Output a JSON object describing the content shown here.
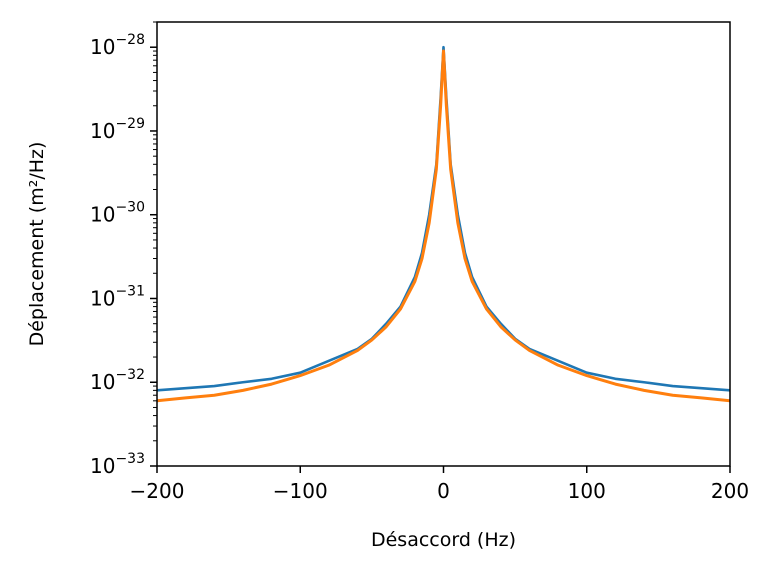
{
  "chart_data": {
    "type": "line",
    "xlabel": "Désaccord (Hz)",
    "ylabel": "Déplacement (m²/Hz)",
    "xlim": [
      -200,
      200
    ],
    "ylim": [
      1e-33,
      2e-28
    ],
    "yscale": "log",
    "grid": false,
    "x_ticks": [
      {
        "value": -200,
        "label": "−200"
      },
      {
        "value": -100,
        "label": "−100"
      },
      {
        "value": 0,
        "label": "0"
      },
      {
        "value": 100,
        "label": "100"
      },
      {
        "value": 200,
        "label": "200"
      }
    ],
    "y_ticks": [
      {
        "exp": -33,
        "base": "10",
        "exponent": "−33"
      },
      {
        "exp": -32,
        "base": "10",
        "exponent": "−32"
      },
      {
        "exp": -31,
        "base": "10",
        "exponent": "−31"
      },
      {
        "exp": -30,
        "base": "10",
        "exponent": "−30"
      },
      {
        "exp": -29,
        "base": "10",
        "exponent": "−29"
      },
      {
        "exp": -28,
        "base": "10",
        "exponent": "−28"
      }
    ],
    "series": [
      {
        "kind": "noisy-measurement",
        "color": "#1f77b4",
        "x": [
          -200,
          -180,
          -160,
          -140,
          -120,
          -100,
          -80,
          -60,
          -50,
          -40,
          -30,
          -20,
          -15,
          -10,
          -5,
          -2,
          0,
          2,
          5,
          10,
          15,
          20,
          30,
          40,
          50,
          60,
          80,
          100,
          120,
          140,
          160,
          180,
          200
        ],
        "y": [
          8e-33,
          8.5e-33,
          9e-33,
          1e-32,
          1.1e-32,
          1.3e-32,
          1.8e-32,
          2.5e-32,
          3.3e-32,
          5e-32,
          8e-32,
          1.8e-31,
          3.5e-31,
          1e-30,
          4e-30,
          2.5e-29,
          1e-28,
          2.5e-29,
          4e-30,
          1e-30,
          3.5e-31,
          1.8e-31,
          8e-32,
          5e-32,
          3.3e-32,
          2.5e-32,
          1.8e-32,
          1.3e-32,
          1.1e-32,
          1e-32,
          9e-33,
          8.5e-33,
          8e-33
        ]
      },
      {
        "kind": "fit",
        "color": "#ff7f0e",
        "x": [
          -200,
          -180,
          -160,
          -140,
          -120,
          -100,
          -80,
          -60,
          -50,
          -40,
          -30,
          -20,
          -15,
          -10,
          -5,
          -2,
          0,
          2,
          5,
          10,
          15,
          20,
          30,
          40,
          50,
          60,
          80,
          100,
          120,
          140,
          160,
          180,
          200
        ],
        "y": [
          6e-33,
          6.5e-33,
          7e-33,
          8e-33,
          9.5e-33,
          1.2e-32,
          1.6e-32,
          2.4e-32,
          3.2e-32,
          4.6e-32,
          7.5e-32,
          1.6e-31,
          3e-31,
          8e-31,
          3.5e-30,
          2e-29,
          9e-29,
          2e-29,
          3.5e-30,
          8e-31,
          3e-31,
          1.6e-31,
          7.5e-32,
          4.6e-32,
          3.2e-32,
          2.4e-32,
          1.6e-32,
          1.2e-32,
          9.5e-33,
          8e-33,
          7e-33,
          6.5e-33,
          6e-33
        ]
      }
    ]
  }
}
